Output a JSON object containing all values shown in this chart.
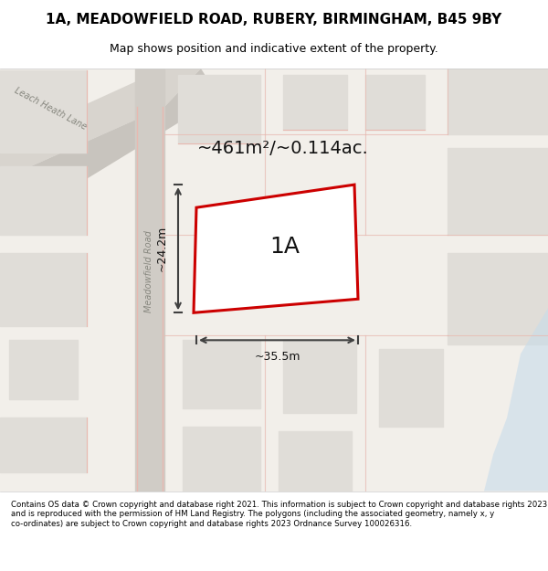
{
  "title_line1": "1A, MEADOWFIELD ROAD, RUBERY, BIRMINGHAM, B45 9BY",
  "title_line2": "Map shows position and indicative extent of the property.",
  "footer_text": "Contains OS data © Crown copyright and database right 2021. This information is subject to Crown copyright and database rights 2023 and is reproduced with the permission of HM Land Registry. The polygons (including the associated geometry, namely x, y co-ordinates) are subject to Crown copyright and database rights 2023 Ordnance Survey 100026316.",
  "area_label": "~461m²/~0.114ac.",
  "property_label": "1A",
  "width_label": "~35.5m",
  "height_label": "~24.2m",
  "bg_color": "#f5f4f2",
  "map_bg": "#f8f7f5",
  "road_color_major": "#d4cfc8",
  "road_color_minor": "#e8e4df",
  "property_outline_color": "#cc0000",
  "property_fill_color": "#ffffff",
  "building_color": "#e0ddd8",
  "dim_line_color": "#404040",
  "pink_road_color": "#e8b8b0",
  "blue_water_color": "#b8d4e8",
  "street_label_meadowfield": "Meadowfield Road",
  "street_label_leach": "Leach Heath Lane"
}
